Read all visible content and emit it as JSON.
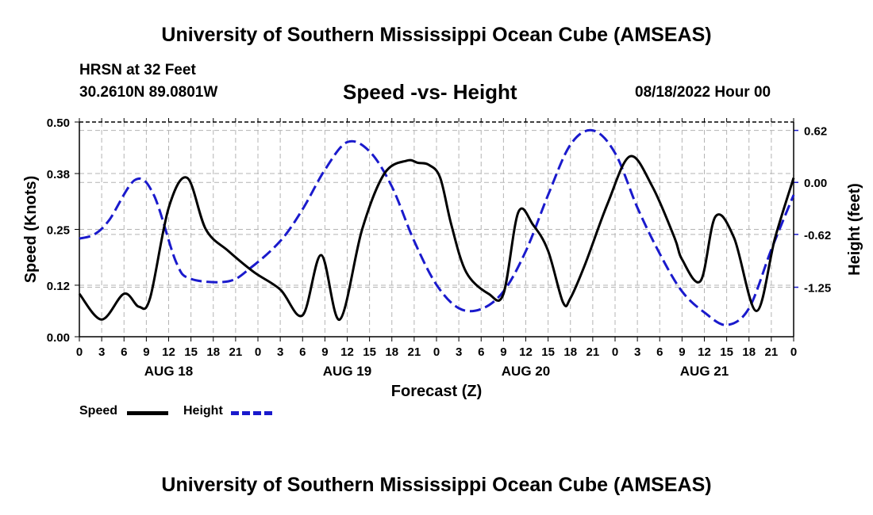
{
  "title": "University of Southern Mississippi Ocean Cube (AMSEAS)",
  "title_bottom": "University of Southern Mississippi Ocean Cube (AMSEAS)",
  "station": "HRSN at 32 Feet",
  "coords": "30.2610N  89.0801W",
  "subtitle": "Speed -vs- Height",
  "run_date": "08/18/2022 Hour 00",
  "colors": {
    "speed": "#000000",
    "height": "#1a1acc",
    "grid": "#b4b4b4"
  },
  "chart_data": {
    "type": "line",
    "title": "Speed -vs- Height",
    "xlabel": "Forecast (Z)",
    "ylabel": "Speed (Knots)",
    "y2label": "Height (feet)",
    "xlim": [
      0,
      96
    ],
    "ylim": [
      0,
      0.5
    ],
    "y2lim": [
      -1.84,
      0.72
    ],
    "grid": true,
    "x_tick_labels": [
      "0",
      "3",
      "6",
      "9",
      "12",
      "15",
      "18",
      "21",
      "0",
      "3",
      "6",
      "9",
      "12",
      "15",
      "18",
      "21",
      "0",
      "3",
      "6",
      "9",
      "12",
      "15",
      "18",
      "21",
      "0",
      "3",
      "6",
      "9",
      "12",
      "15",
      "18",
      "21",
      "0"
    ],
    "day_labels": [
      {
        "label": "AUG 18",
        "x": 12
      },
      {
        "label": "AUG 19",
        "x": 36
      },
      {
        "label": "AUG 20",
        "x": 60
      },
      {
        "label": "AUG 21",
        "x": 84
      }
    ],
    "y_ticks": [
      "0.00",
      "0.12",
      "0.25",
      "0.38",
      "0.50"
    ],
    "y2_ticks": [
      "-1.25",
      "-0.62",
      "0.00",
      "0.62"
    ],
    "series": [
      {
        "name": "Speed",
        "axis": "left",
        "style": "solid",
        "x": [
          0,
          3,
          6,
          8,
          9.5,
          12,
          14.5,
          17,
          20,
          23.5,
          27,
          30,
          32.5,
          35,
          38,
          41,
          44,
          45.5,
          47,
          48.5,
          50,
          52,
          55,
          57,
          59,
          61,
          63,
          65,
          66,
          68,
          71,
          74,
          77,
          80,
          81,
          83.5,
          85.5,
          88,
          91,
          93.5,
          96
        ],
        "values": [
          0.1,
          0.04,
          0.1,
          0.07,
          0.09,
          0.3,
          0.37,
          0.25,
          0.2,
          0.15,
          0.11,
          0.05,
          0.19,
          0.04,
          0.25,
          0.38,
          0.41,
          0.405,
          0.4,
          0.37,
          0.26,
          0.15,
          0.1,
          0.1,
          0.29,
          0.26,
          0.2,
          0.08,
          0.09,
          0.17,
          0.31,
          0.42,
          0.35,
          0.23,
          0.18,
          0.13,
          0.28,
          0.23,
          0.06,
          0.23,
          0.37
        ]
      },
      {
        "name": "Height",
        "axis": "right",
        "style": "dashed",
        "x": [
          0,
          2,
          4,
          7.5,
          10,
          13,
          15,
          20,
          23,
          27,
          30,
          33,
          36,
          39,
          42,
          45,
          48,
          51,
          54,
          57,
          60,
          63,
          66,
          69,
          72,
          75,
          78,
          81,
          84,
          87,
          90,
          93,
          96
        ],
        "values": [
          -0.67,
          -0.62,
          -0.45,
          0.03,
          -0.15,
          -0.95,
          -1.15,
          -1.18,
          -1.02,
          -0.7,
          -0.32,
          0.15,
          0.48,
          0.37,
          -0.05,
          -0.7,
          -1.22,
          -1.5,
          -1.51,
          -1.3,
          -0.82,
          -0.15,
          0.45,
          0.62,
          0.35,
          -0.3,
          -0.85,
          -1.3,
          -1.55,
          -1.7,
          -1.5,
          -0.8,
          -0.15
        ]
      }
    ]
  },
  "legend": {
    "speed_label": "Speed",
    "height_label": "Height"
  }
}
